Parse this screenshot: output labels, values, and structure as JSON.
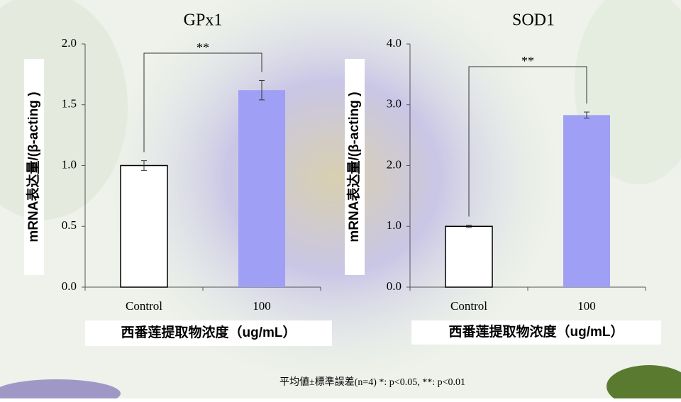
{
  "chart_data": [
    {
      "type": "bar",
      "title": "GPx1",
      "y_label": "mRNA表达量/(β-acting )",
      "x_label": "西番莲提取物浓度（ug/mL）",
      "categories": [
        "Control",
        "100"
      ],
      "values": [
        1.0,
        1.62
      ],
      "errors": [
        0.04,
        0.08
      ],
      "colors": [
        "#ffffff",
        "#9f9ff5"
      ],
      "ylim": [
        0,
        2
      ],
      "yticks": [
        {
          "value": 0,
          "label": "0.0"
        },
        0.5,
        {
          "value": 1,
          "label": "1.0"
        },
        1.5,
        {
          "value": 2,
          "label": "2.0"
        }
      ],
      "annotation": "**"
    },
    {
      "type": "bar",
      "title": "SOD1",
      "y_label": "mRNA表达量/(β-acting )",
      "x_label": "西番莲提取物浓度（ug/mL）",
      "categories": [
        "Control",
        "100"
      ],
      "values": [
        1.0,
        2.83
      ],
      "errors": [
        0.02,
        0.05
      ],
      "colors": [
        "#ffffff",
        "#9f9ff5"
      ],
      "ylim": [
        0,
        4
      ],
      "yticks": [
        {
          "value": 0,
          "label": "0.0"
        },
        {
          "value": 1,
          "label": "1.0"
        },
        {
          "value": 2,
          "label": "2.0"
        },
        {
          "value": 3,
          "label": "3.0"
        },
        {
          "value": 4,
          "label": "4.0"
        }
      ],
      "annotation": "**"
    }
  ],
  "footnote": "平均値±標準誤差(n=4) *: p<0.05, **: p<0.01"
}
